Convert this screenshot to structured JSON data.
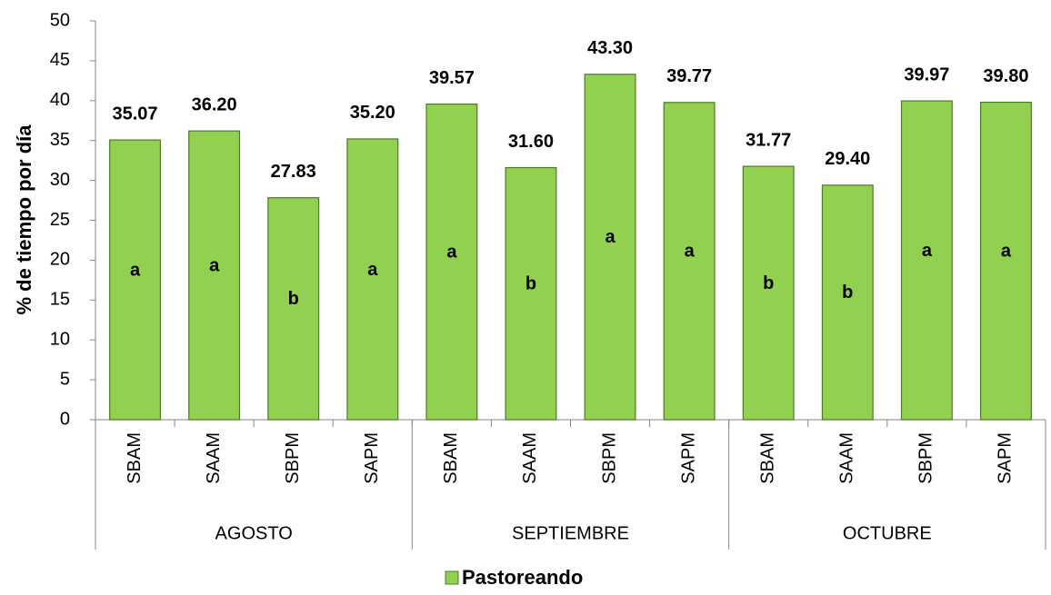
{
  "chart_data": {
    "type": "bar",
    "y_label": "% de tiempo por día",
    "categories": [
      "SBAM",
      "SAAM",
      "SBPM",
      "SAPM",
      "SBAM",
      "SAAM",
      "SBPM",
      "SAPM",
      "SBAM",
      "SAAM",
      "SBPM",
      "SAPM"
    ],
    "groups": [
      "AGOSTO",
      "SEPTIEMBRE",
      "OCTUBRE"
    ],
    "series": [
      {
        "name": "Pastoreando",
        "color": "#92d050",
        "values": [
          35.07,
          36.2,
          27.83,
          35.2,
          39.57,
          31.6,
          43.3,
          39.77,
          31.77,
          29.4,
          39.97,
          39.8
        ],
        "value_labels": [
          "35.07",
          "36.20",
          "27.83",
          "35.20",
          "39.57",
          "31.60",
          "43.30",
          "39.77",
          "31.77",
          "29.40",
          "39.97",
          "39.80"
        ],
        "annotations": [
          "a",
          "a",
          "b",
          "a",
          "a",
          "b",
          "a",
          "a",
          "b",
          "b",
          "a",
          "a"
        ]
      }
    ],
    "ylim": [
      0,
      50
    ],
    "yticks": [
      0,
      5,
      10,
      15,
      20,
      25,
      30,
      35,
      40,
      45,
      50
    ]
  }
}
